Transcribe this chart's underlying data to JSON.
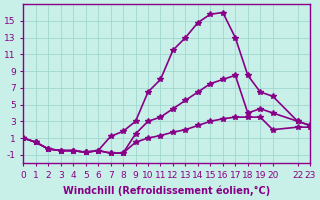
{
  "x": [
    0,
    1,
    2,
    3,
    4,
    5,
    6,
    7,
    8,
    9,
    10,
    11,
    12,
    13,
    14,
    15,
    16,
    17,
    18,
    19,
    20,
    22,
    23
  ],
  "upper": [
    1.0,
    0.5,
    -0.3,
    -0.5,
    -0.5,
    -0.7,
    -0.5,
    1.2,
    1.8,
    3.0,
    6.5,
    8.0,
    11.5,
    13.0,
    14.8,
    15.8,
    16.0,
    13.0,
    8.5,
    6.5,
    6.0,
    3.0,
    2.5
  ],
  "middle": [
    1.0,
    0.5,
    -0.3,
    -0.5,
    -0.5,
    -0.7,
    -0.5,
    -0.8,
    -0.8,
    1.5,
    3.0,
    3.5,
    4.5,
    5.5,
    6.5,
    7.5,
    8.0,
    8.5,
    4.0,
    4.5,
    4.0,
    3.0,
    2.5
  ],
  "lower": [
    1.0,
    0.5,
    -0.3,
    -0.5,
    -0.5,
    -0.7,
    -0.5,
    -0.8,
    -0.8,
    0.5,
    1.0,
    1.3,
    1.7,
    2.0,
    2.5,
    3.0,
    3.3,
    3.5,
    3.5,
    3.5,
    2.0,
    2.3,
    2.3
  ],
  "bg_color": "#c8f0e8",
  "grid_color": "#a0d8d0",
  "line_color": "#880088",
  "marker": "*",
  "markersize": 4,
  "xlabel": "Windchill (Refroidissement éolien,°C)",
  "ylim": [
    -2,
    17
  ],
  "xlim": [
    0,
    23
  ],
  "yticks": [
    -1,
    1,
    3,
    5,
    7,
    9,
    11,
    13,
    15
  ],
  "xticks": [
    0,
    1,
    2,
    3,
    4,
    5,
    6,
    7,
    8,
    9,
    10,
    11,
    12,
    13,
    14,
    15,
    16,
    17,
    18,
    19,
    20,
    22,
    23
  ],
  "xtick_labels": [
    "0",
    "1",
    "2",
    "3",
    "4",
    "5",
    "6",
    "7",
    "8",
    "9",
    "10",
    "11",
    "12",
    "13",
    "14",
    "15",
    "16",
    "17",
    "18",
    "19",
    "20",
    "22",
    "23"
  ],
  "xlabel_color": "#880088",
  "tick_color": "#880088",
  "font_size": 6.5,
  "xlabel_fontsize": 7,
  "linewidth": 1.2
}
